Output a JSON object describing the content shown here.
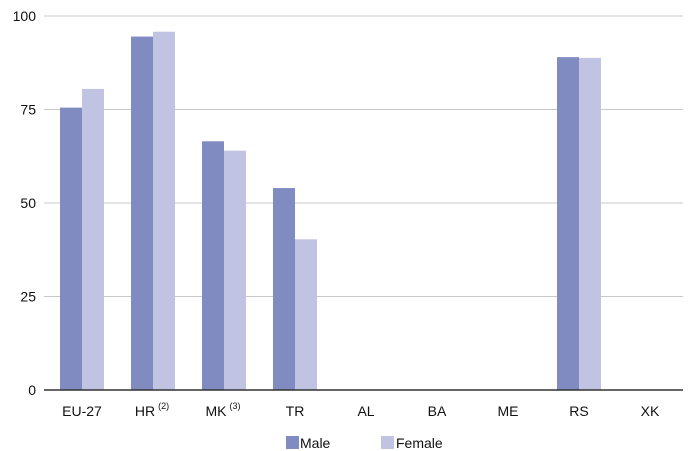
{
  "chart_data": {
    "type": "bar",
    "categories": [
      "EU-27",
      "HR",
      "MK",
      "TR",
      "AL",
      "BA",
      "ME",
      "RS",
      "XK"
    ],
    "category_notes": [
      "",
      "(2)",
      "(3)",
      "",
      "",
      "",
      "",
      "",
      ""
    ],
    "series": [
      {
        "name": "Male",
        "color": "#7f8bc1",
        "values": [
          75.5,
          94.5,
          66.5,
          54.0,
          null,
          null,
          null,
          89.0,
          null
        ]
      },
      {
        "name": "Female",
        "color": "#c0c4e2",
        "values": [
          80.5,
          95.8,
          64.0,
          40.3,
          null,
          null,
          null,
          88.8,
          null
        ]
      }
    ],
    "yticks": [
      0,
      25,
      50,
      75,
      100
    ],
    "ylim": [
      0,
      100
    ],
    "grid": true,
    "legend_position": "bottom-center",
    "title": "",
    "xlabel": "",
    "ylabel": ""
  }
}
